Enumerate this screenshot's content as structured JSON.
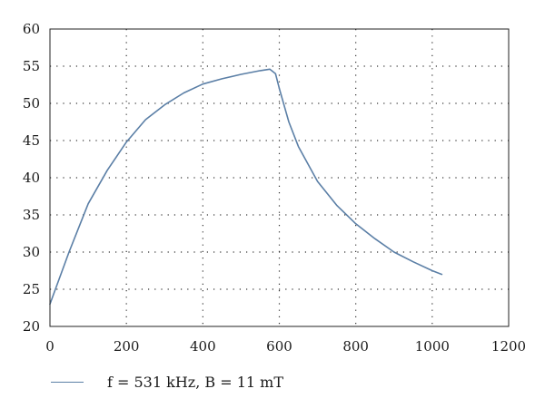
{
  "chart_data": {
    "type": "line",
    "title": "",
    "xlabel": "",
    "ylabel": "",
    "xlim": [
      0,
      1200
    ],
    "ylim": [
      20,
      60
    ],
    "xticks": [
      0,
      200,
      400,
      600,
      800,
      1000,
      1200
    ],
    "yticks": [
      20,
      25,
      30,
      35,
      40,
      45,
      50,
      55,
      60
    ],
    "grid": "dotted",
    "legend_position": "bottom-left",
    "series": [
      {
        "name": "f = 531 kHz, B = 11 mT",
        "color": "#5b7fa6",
        "x": [
          0,
          50,
          100,
          150,
          200,
          250,
          300,
          350,
          400,
          450,
          500,
          550,
          575,
          590,
          600,
          625,
          650,
          700,
          750,
          800,
          850,
          900,
          950,
          1000,
          1025
        ],
        "y": [
          23,
          30,
          36.5,
          41,
          44.8,
          47.8,
          49.8,
          51.4,
          52.6,
          53.3,
          53.9,
          54.4,
          54.6,
          54,
          52,
          47.5,
          44.2,
          39.5,
          36.3,
          33.8,
          31.8,
          30,
          28.7,
          27.5,
          27
        ]
      }
    ]
  }
}
